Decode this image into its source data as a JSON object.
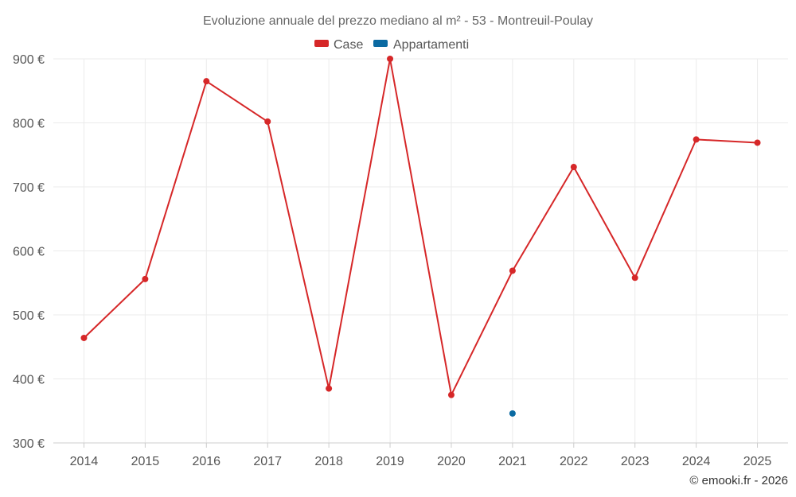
{
  "chart_data": {
    "type": "line",
    "title": "Evoluzione annuale del prezzo mediano al m² - 53 - Montreuil-Poulay",
    "categories": [
      "2014",
      "2015",
      "2016",
      "2017",
      "2018",
      "2019",
      "2020",
      "2021",
      "2022",
      "2023",
      "2024",
      "2025"
    ],
    "ylim": [
      300,
      900
    ],
    "yticks": [
      300,
      400,
      500,
      600,
      700,
      800,
      900
    ],
    "y_tick_labels": [
      "300 €",
      "400 €",
      "500 €",
      "600 €",
      "700 €",
      "800 €",
      "900 €"
    ],
    "xlabel": "",
    "ylabel": "",
    "grid": true,
    "legend_position": "top-center",
    "series": [
      {
        "name": "Case",
        "color": "#d62728",
        "values": [
          464,
          556,
          865,
          802,
          385,
          900,
          375,
          569,
          731,
          558,
          774,
          769
        ]
      },
      {
        "name": "Appartamenti",
        "color": "#0b6aa2",
        "values": [
          null,
          null,
          null,
          null,
          null,
          null,
          null,
          346,
          null,
          null,
          null,
          null
        ]
      }
    ],
    "credit": "© emooki.fr - 2026"
  }
}
